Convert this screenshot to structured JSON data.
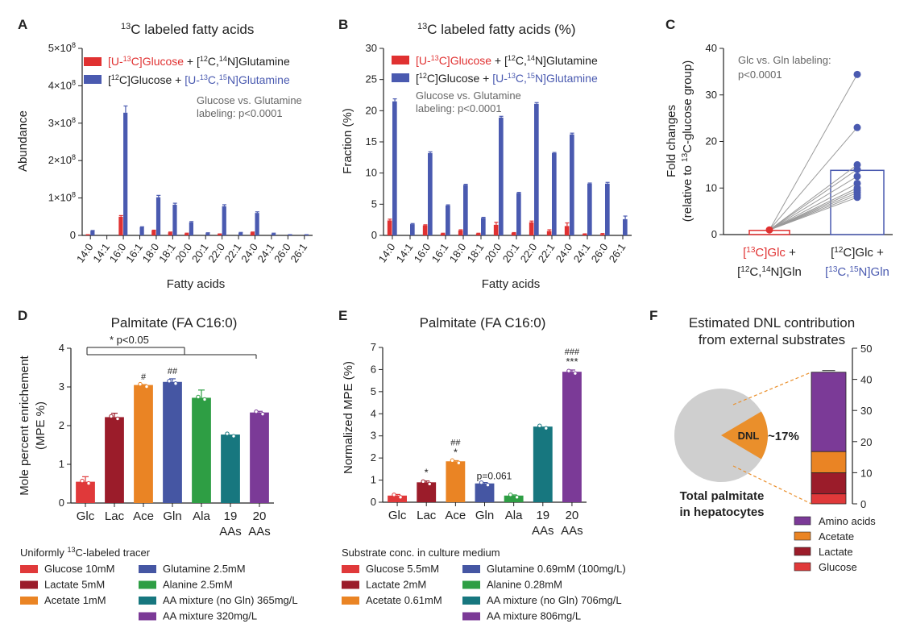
{
  "colors": {
    "red": "#e03131",
    "blue": "#4a5ab0",
    "glucose": "#e0393a",
    "lactate": "#9b1c2a",
    "acetate": "#ea8424",
    "glutamine": "#4556a3",
    "alanine": "#2e9e44",
    "aa_no_gln": "#17777f",
    "aa_mix": "#7b3a97",
    "pie": "#cfcfcf",
    "dnl": "#ea8f2b"
  },
  "panels": {
    "A": "A",
    "B": "B",
    "C": "C",
    "D": "D",
    "E": "E",
    "F": "F"
  },
  "chart_data": [
    {
      "id": "A",
      "type": "bar",
      "title_pre": "13",
      "title_main": "C labeled fatty acids",
      "xlabel": "Fatty acids",
      "ylabel": "Abundance",
      "ylim": [
        0,
        5
      ],
      "yticks": [
        "0",
        "1×10",
        "2×10",
        "3×10",
        "4×10",
        "5×10"
      ],
      "ytick_exp": "8",
      "categories": [
        "14:0",
        "14:1",
        "16:0",
        "16:1",
        "18:0",
        "18:1",
        "20:0",
        "20:1",
        "22:0",
        "22:1",
        "24:0",
        "24:1",
        "26:0",
        "26:1"
      ],
      "series": [
        {
          "name": "red",
          "values": [
            0.02,
            0.0,
            0.5,
            0.0,
            0.13,
            0.08,
            0.05,
            0.0,
            0.03,
            0.0,
            0.08,
            0.0,
            0.0,
            0.0
          ],
          "errors": [
            0,
            0,
            0.03,
            0,
            0.01,
            0.01,
            0.01,
            0,
            0.01,
            0,
            0.01,
            0,
            0,
            0
          ]
        },
        {
          "name": "blue",
          "values": [
            0.12,
            0.0,
            3.28,
            0.22,
            1.02,
            0.82,
            0.35,
            0.06,
            0.78,
            0.07,
            0.6,
            0.05,
            0.01,
            0.01
          ],
          "errors": [
            0.01,
            0,
            0.18,
            0.01,
            0.05,
            0.04,
            0.02,
            0.01,
            0.04,
            0.01,
            0.03,
            0.01,
            0,
            0
          ]
        }
      ],
      "legend": {
        "red_a": "[U-",
        "red_b": "13",
        "red_c": "C]Glucose",
        "red_d": " + [",
        "red_e": "12",
        "red_f": "C,",
        "red_g": "14",
        "red_h": "N]Glutamine",
        "blue_a": "[",
        "blue_b": "12",
        "blue_c": "C]Glucose + ",
        "blue_d": "[U-",
        "blue_e": "13",
        "blue_f": "C,",
        "blue_g": "15",
        "blue_h": "N]Glutamine"
      },
      "annotation_1": "Glucose vs. Glutamine",
      "annotation_2": "labeling: p<0.0001"
    },
    {
      "id": "B",
      "type": "bar",
      "title_pre": "13",
      "title_main": "C labeled fatty acids (%)",
      "xlabel": "Fatty acids",
      "ylabel": "Fraction (%)",
      "ylim": [
        0,
        30
      ],
      "yticks": [
        "0",
        "5",
        "10",
        "15",
        "20",
        "25",
        "30"
      ],
      "categories": [
        "14:0",
        "14:1",
        "16:0",
        "16:1",
        "18:0",
        "18:1",
        "20:0",
        "20:1",
        "22:0",
        "22:1",
        "24:0",
        "24:1",
        "26:0",
        "26:1"
      ],
      "series": [
        {
          "name": "red",
          "values": [
            2.4,
            0.0,
            1.6,
            0.3,
            0.8,
            0.3,
            1.7,
            0.4,
            2.1,
            0.7,
            1.5,
            0.2,
            0.2,
            0.0
          ],
          "errors": [
            0.2,
            0,
            0.1,
            0.05,
            0.1,
            0.05,
            0.4,
            0.05,
            0.2,
            0.2,
            0.5,
            0.05,
            0.1,
            0
          ]
        },
        {
          "name": "blue",
          "values": [
            21.5,
            1.8,
            13.2,
            4.8,
            8.1,
            2.8,
            18.9,
            6.8,
            21.1,
            13.2,
            16.2,
            8.3,
            8.3,
            2.6
          ],
          "errors": [
            0.4,
            0.1,
            0.2,
            0.1,
            0.1,
            0.1,
            0.2,
            0.1,
            0.2,
            0.1,
            0.2,
            0.1,
            0.2,
            0.5
          ]
        }
      ],
      "legend": {
        "red_a": "[U-",
        "red_b": "13",
        "red_c": "C]Glucose",
        "red_d": " + [",
        "red_e": "12",
        "red_f": "C,",
        "red_g": "14",
        "red_h": "N]Glutamine",
        "blue_a": "[",
        "blue_b": "12",
        "blue_c": "C]Glucose + ",
        "blue_d": "[U-",
        "blue_e": "13",
        "blue_f": "C,",
        "blue_g": "15",
        "blue_h": "N]Glutamine"
      },
      "annotation_1": "Glucose vs. Glutamine",
      "annotation_2": "labeling: p<0.0001"
    },
    {
      "id": "C",
      "type": "bar",
      "ylim": [
        0,
        40
      ],
      "yticks": [
        "0",
        "10",
        "20",
        "30",
        "40"
      ],
      "ylabel_1": "Fold changes",
      "ylabel_2a": "(relative to ",
      "ylabel_2b": "13",
      "ylabel_2c": "C-glucose group)",
      "categories": [
        "glc",
        "gln"
      ],
      "bar_values": [
        0.9,
        13.8
      ],
      "paired_points": [
        34.4,
        23.0,
        15.0,
        14.0,
        12.5,
        11.0,
        10.0,
        9.5,
        9.0,
        8.5,
        8.0
      ],
      "annotation_1": "Glc vs. Gln labeling:",
      "annotation_2": "p<0.0001",
      "xl1": {
        "a": "[",
        "b": "13",
        "c": "C]Glc",
        "d": " +"
      },
      "xl2": {
        "a": "[",
        "b": "12",
        "c": "C,",
        "d": "14",
        "e": "N]Gln"
      },
      "xr1": {
        "a": "[",
        "b": "12",
        "c": "C]Glc +"
      },
      "xr2": {
        "a": "[",
        "b": "13",
        "c": "C,",
        "d": "15",
        "e": "N]Gln"
      }
    },
    {
      "id": "D",
      "type": "bar",
      "title": "Palmitate (FA C16:0)",
      "ylabel_1": "Mole percent enrichement",
      "ylabel_2": "(MPE %)",
      "ylim": [
        0,
        4
      ],
      "yticks": [
        "0",
        "1",
        "2",
        "3",
        "4"
      ],
      "categories": [
        "Glc",
        "Lac",
        "Ace",
        "Gln",
        "Ala",
        "19",
        "20"
      ],
      "categories_line2": [
        "",
        "",
        "",
        "",
        "",
        "AAs",
        "AAs"
      ],
      "values": [
        0.55,
        2.22,
        3.05,
        3.13,
        2.72,
        1.77,
        2.34
      ],
      "errors": [
        0.13,
        0.1,
        0.01,
        0.08,
        0.2,
        0.0,
        0.03
      ],
      "marks": [
        "",
        "",
        "#",
        "##",
        "",
        "",
        ""
      ],
      "sig": "* p<0.05",
      "legend_title_a": "Uniformly ",
      "legend_title_b": "13",
      "legend_title_c": "C-labeled tracer",
      "legend": [
        "Glucose 10mM",
        "Lactate 5mM",
        "Acetate 1mM",
        "Glutamine 2.5mM",
        "Alanine 2.5mM",
        "AA mixture (no Gln) 365mg/L",
        "AA mixture 320mg/L"
      ]
    },
    {
      "id": "E",
      "type": "bar",
      "title": "Palmitate (FA C16:0)",
      "ylabel": "Normalized MPE (%)",
      "ylim": [
        0,
        7
      ],
      "yticks": [
        "0",
        "1",
        "2",
        "3",
        "4",
        "5",
        "6",
        "7"
      ],
      "categories": [
        "Glc",
        "Lac",
        "Ace",
        "Gln",
        "Ala",
        "19",
        "20"
      ],
      "categories_line2": [
        "",
        "",
        "",
        "",
        "",
        "AAs",
        "AAs"
      ],
      "values": [
        0.3,
        0.9,
        1.85,
        0.85,
        0.3,
        3.42,
        5.9
      ],
      "errors": [
        0.05,
        0.06,
        0.03,
        0.04,
        0.03,
        0.0,
        0.08
      ],
      "marks_top": [
        "",
        "",
        "##",
        "",
        "",
        "",
        "###"
      ],
      "marks_bottom": [
        "",
        "*",
        "*",
        "p=0.061",
        "",
        "",
        "***"
      ],
      "legend_title": "Substrate conc. in culture medium",
      "legend": [
        "Glucose 5.5mM",
        "Lactate 2mM",
        "Acetate 0.61mM",
        "Glutamine 0.69mM (100mg/L)",
        "Alanine 0.28mM",
        "AA mixture (no Gln) 706mg/L",
        "AA mixture 806mg/L"
      ]
    },
    {
      "id": "F",
      "type": "pie",
      "title_1": "Estimated DNL contribution",
      "title_2": "from external substrates",
      "pie_label": "DNL",
      "pie_percent": "~17%",
      "pie_fraction": 0.17,
      "caption_1": "Total palmitate",
      "caption_2": "in hepatocytes",
      "ylim": [
        0,
        50
      ],
      "yticks": [
        "0",
        "10",
        "20",
        "30",
        "40",
        "50"
      ],
      "stack": [
        {
          "name": "Glucose",
          "value": 3.2
        },
        {
          "name": "Lactate",
          "value": 6.8
        },
        {
          "name": "Acetate",
          "value": 6.8
        },
        {
          "name": "Amino acids",
          "value": 25.5
        }
      ],
      "legend": [
        "Amino acids",
        "Acetate",
        "Lactate",
        "Glucose"
      ]
    }
  ]
}
